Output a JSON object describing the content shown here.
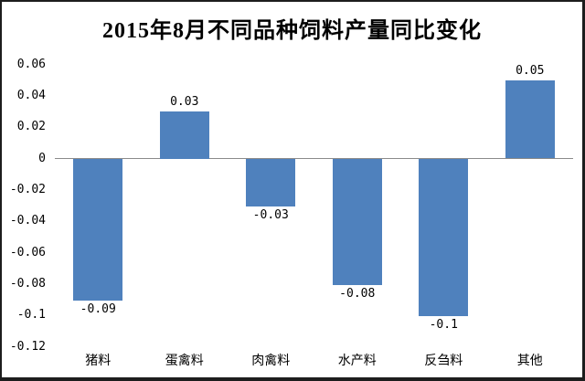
{
  "chart_data": {
    "type": "bar",
    "title": "2015年8月不同品种饲料产量同比变化",
    "categories": [
      "猪料",
      "蛋禽料",
      "肉禽料",
      "水产料",
      "反刍料",
      "其他"
    ],
    "values": [
      -0.09,
      0.03,
      -0.03,
      -0.08,
      -0.1,
      0.05
    ],
    "data_labels": [
      "-0.09",
      "0.03",
      "-0.03",
      "-0.08",
      "-0.1",
      "0.05"
    ],
    "xlabel": "",
    "ylabel": "",
    "ylim": [
      -0.12,
      0.06
    ],
    "ytick_labels": [
      "0.06",
      "0.04",
      "0.02",
      "0",
      "-0.02",
      "-0.04",
      "-0.06",
      "-0.08",
      "-0.1",
      "-0.12"
    ],
    "grid": false,
    "legend": false,
    "bar_color": "#4F81BD",
    "axis_line_color": "#8A8A8A",
    "text_color": "#000000",
    "frame_color": "#1D1D1D",
    "background_color": "#FFFFFF"
  }
}
